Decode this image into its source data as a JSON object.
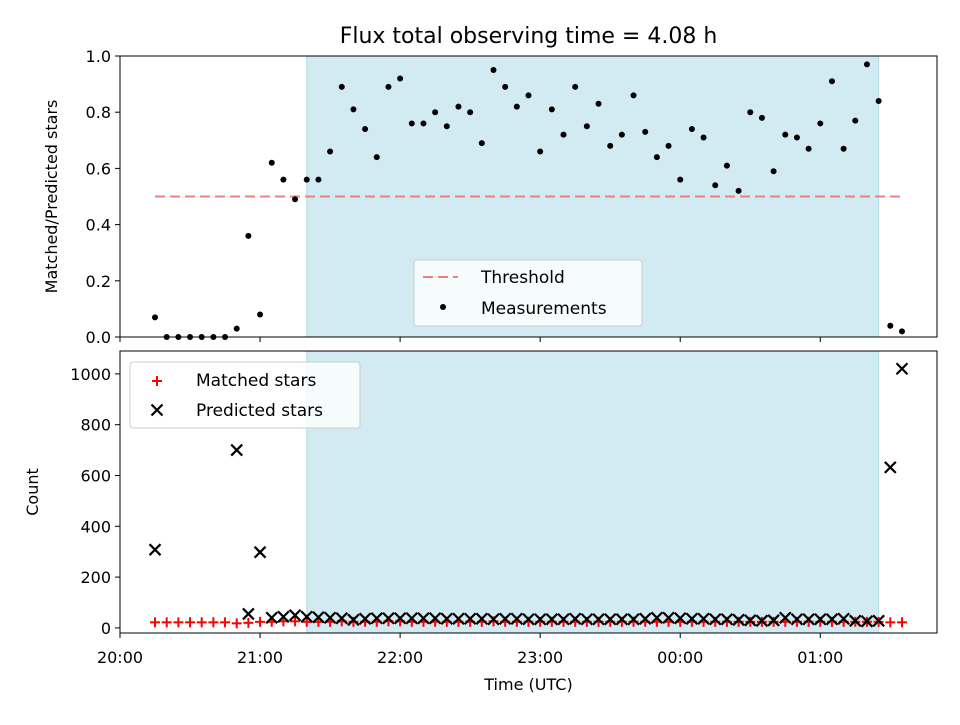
{
  "chart_data": [
    {
      "type": "scatter",
      "title": "Flux total observing time = 4.08 h",
      "xlabel": "",
      "ylabel": "Matched/Predicted stars",
      "xlim": [
        "20:00",
        "01:50"
      ],
      "ylim": [
        0,
        1.0
      ],
      "x_tick_labels": [],
      "y_ticks": [
        "0.0",
        "0.2",
        "0.4",
        "0.6",
        "0.8",
        "1.0"
      ],
      "shaded_interval": [
        "21:20",
        "01:25"
      ],
      "shade_color": "#add8e6",
      "threshold": {
        "name": "Threshold",
        "y": 0.5,
        "x_range": [
          "20:15",
          "01:35"
        ],
        "color": "#f08080"
      },
      "measurements": {
        "name": "Measurements",
        "color": "#000000",
        "x": [
          "20:15",
          "20:20",
          "20:25",
          "20:30",
          "20:35",
          "20:40",
          "20:45",
          "20:50",
          "20:55",
          "21:00",
          "21:05",
          "21:10",
          "21:15",
          "21:20",
          "21:25",
          "21:30",
          "21:35",
          "21:40",
          "21:45",
          "21:50",
          "21:55",
          "22:00",
          "22:05",
          "22:10",
          "22:15",
          "22:20",
          "22:25",
          "22:30",
          "22:35",
          "22:40",
          "22:45",
          "22:50",
          "22:55",
          "23:00",
          "23:05",
          "23:10",
          "23:15",
          "23:20",
          "23:25",
          "23:30",
          "23:35",
          "23:40",
          "23:45",
          "23:50",
          "23:55",
          "00:00",
          "00:05",
          "00:10",
          "00:15",
          "00:20",
          "00:25",
          "00:30",
          "00:35",
          "00:40",
          "00:45",
          "00:50",
          "00:55",
          "01:00",
          "01:05",
          "01:10",
          "01:15",
          "01:20",
          "01:25",
          "01:30",
          "01:35"
        ],
        "y": [
          0.07,
          0.0,
          0.0,
          0.0,
          0.0,
          0.0,
          0.0,
          0.03,
          0.36,
          0.08,
          0.62,
          0.56,
          0.49,
          0.56,
          0.56,
          0.66,
          0.89,
          0.81,
          0.74,
          0.64,
          0.89,
          0.92,
          0.76,
          0.76,
          0.8,
          0.75,
          0.82,
          0.8,
          0.69,
          0.95,
          0.89,
          0.82,
          0.86,
          0.66,
          0.81,
          0.72,
          0.89,
          0.75,
          0.83,
          0.68,
          0.72,
          0.86,
          0.73,
          0.64,
          0.68,
          0.56,
          0.74,
          0.71,
          0.54,
          0.61,
          0.52,
          0.8,
          0.78,
          0.59,
          0.72,
          0.71,
          0.67,
          0.76,
          0.91,
          0.67,
          0.77,
          0.97,
          0.84,
          0.04,
          0.02
        ]
      },
      "legend_position": "lower-center"
    },
    {
      "type": "scatter",
      "title": "",
      "xlabel": "Time (UTC)",
      "ylabel": "Count",
      "xlim": [
        "20:00",
        "01:50"
      ],
      "ylim": [
        -20,
        1090
      ],
      "x_tick_labels": [
        "20:00",
        "21:00",
        "22:00",
        "23:00",
        "00:00",
        "01:00"
      ],
      "y_ticks": [
        "0",
        "200",
        "400",
        "600",
        "800",
        "1000"
      ],
      "shaded_interval": [
        "21:20",
        "01:25"
      ],
      "shade_color": "#add8e6",
      "series": [
        {
          "name": "Matched stars",
          "marker": "plus",
          "color": "#ff0000",
          "x": [
            "20:15",
            "20:20",
            "20:25",
            "20:30",
            "20:35",
            "20:40",
            "20:45",
            "20:50",
            "20:55",
            "21:00",
            "21:05",
            "21:10",
            "21:15",
            "21:20",
            "21:25",
            "21:30",
            "21:35",
            "21:40",
            "21:45",
            "21:50",
            "21:55",
            "22:00",
            "22:05",
            "22:10",
            "22:15",
            "22:20",
            "22:25",
            "22:30",
            "22:35",
            "22:40",
            "22:45",
            "22:50",
            "22:55",
            "23:00",
            "23:05",
            "23:10",
            "23:15",
            "23:20",
            "23:25",
            "23:30",
            "23:35",
            "23:40",
            "23:45",
            "23:50",
            "23:55",
            "00:00",
            "00:05",
            "00:10",
            "00:15",
            "00:20",
            "00:25",
            "00:30",
            "00:35",
            "00:40",
            "00:45",
            "00:50",
            "00:55",
            "01:00",
            "01:05",
            "01:10",
            "01:15",
            "01:20",
            "01:25",
            "01:30",
            "01:35"
          ],
          "y": [
            22,
            22,
            22,
            22,
            22,
            22,
            22,
            18,
            20,
            24,
            24,
            26,
            26,
            24,
            24,
            24,
            26,
            24,
            24,
            24,
            26,
            26,
            24,
            24,
            24,
            24,
            24,
            24,
            24,
            26,
            24,
            24,
            24,
            24,
            24,
            24,
            24,
            24,
            24,
            24,
            24,
            24,
            24,
            24,
            24,
            24,
            24,
            24,
            24,
            24,
            24,
            24,
            24,
            24,
            24,
            24,
            24,
            24,
            24,
            24,
            24,
            24,
            24,
            22,
            22
          ]
        },
        {
          "name": "Predicted stars",
          "marker": "x",
          "color": "#000000",
          "x": [
            "20:15",
            "20:50",
            "20:55",
            "21:00",
            "21:05",
            "21:10",
            "21:15",
            "21:20",
            "21:25",
            "21:30",
            "21:35",
            "21:40",
            "21:45",
            "21:50",
            "21:55",
            "22:00",
            "22:05",
            "22:10",
            "22:15",
            "22:20",
            "22:25",
            "22:30",
            "22:35",
            "22:40",
            "22:45",
            "22:50",
            "22:55",
            "23:00",
            "23:05",
            "23:10",
            "23:15",
            "23:20",
            "23:25",
            "23:30",
            "23:35",
            "23:40",
            "23:45",
            "23:50",
            "23:55",
            "00:00",
            "00:05",
            "00:10",
            "00:15",
            "00:20",
            "00:25",
            "00:30",
            "00:35",
            "00:40",
            "00:45",
            "00:50",
            "00:55",
            "01:00",
            "01:05",
            "01:10",
            "01:15",
            "01:20",
            "01:25",
            "01:30",
            "01:35"
          ],
          "y": [
            308,
            700,
            55,
            298,
            40,
            44,
            50,
            44,
            42,
            40,
            38,
            32,
            36,
            38,
            38,
            38,
            38,
            38,
            38,
            36,
            36,
            36,
            36,
            34,
            36,
            36,
            34,
            34,
            34,
            34,
            36,
            34,
            34,
            34,
            34,
            34,
            36,
            40,
            40,
            38,
            36,
            36,
            34,
            34,
            32,
            30,
            28,
            30,
            40,
            34,
            34,
            34,
            34,
            36,
            28,
            26,
            28,
            632,
            1020
          ]
        }
      ],
      "legend_position": "upper-left"
    }
  ]
}
